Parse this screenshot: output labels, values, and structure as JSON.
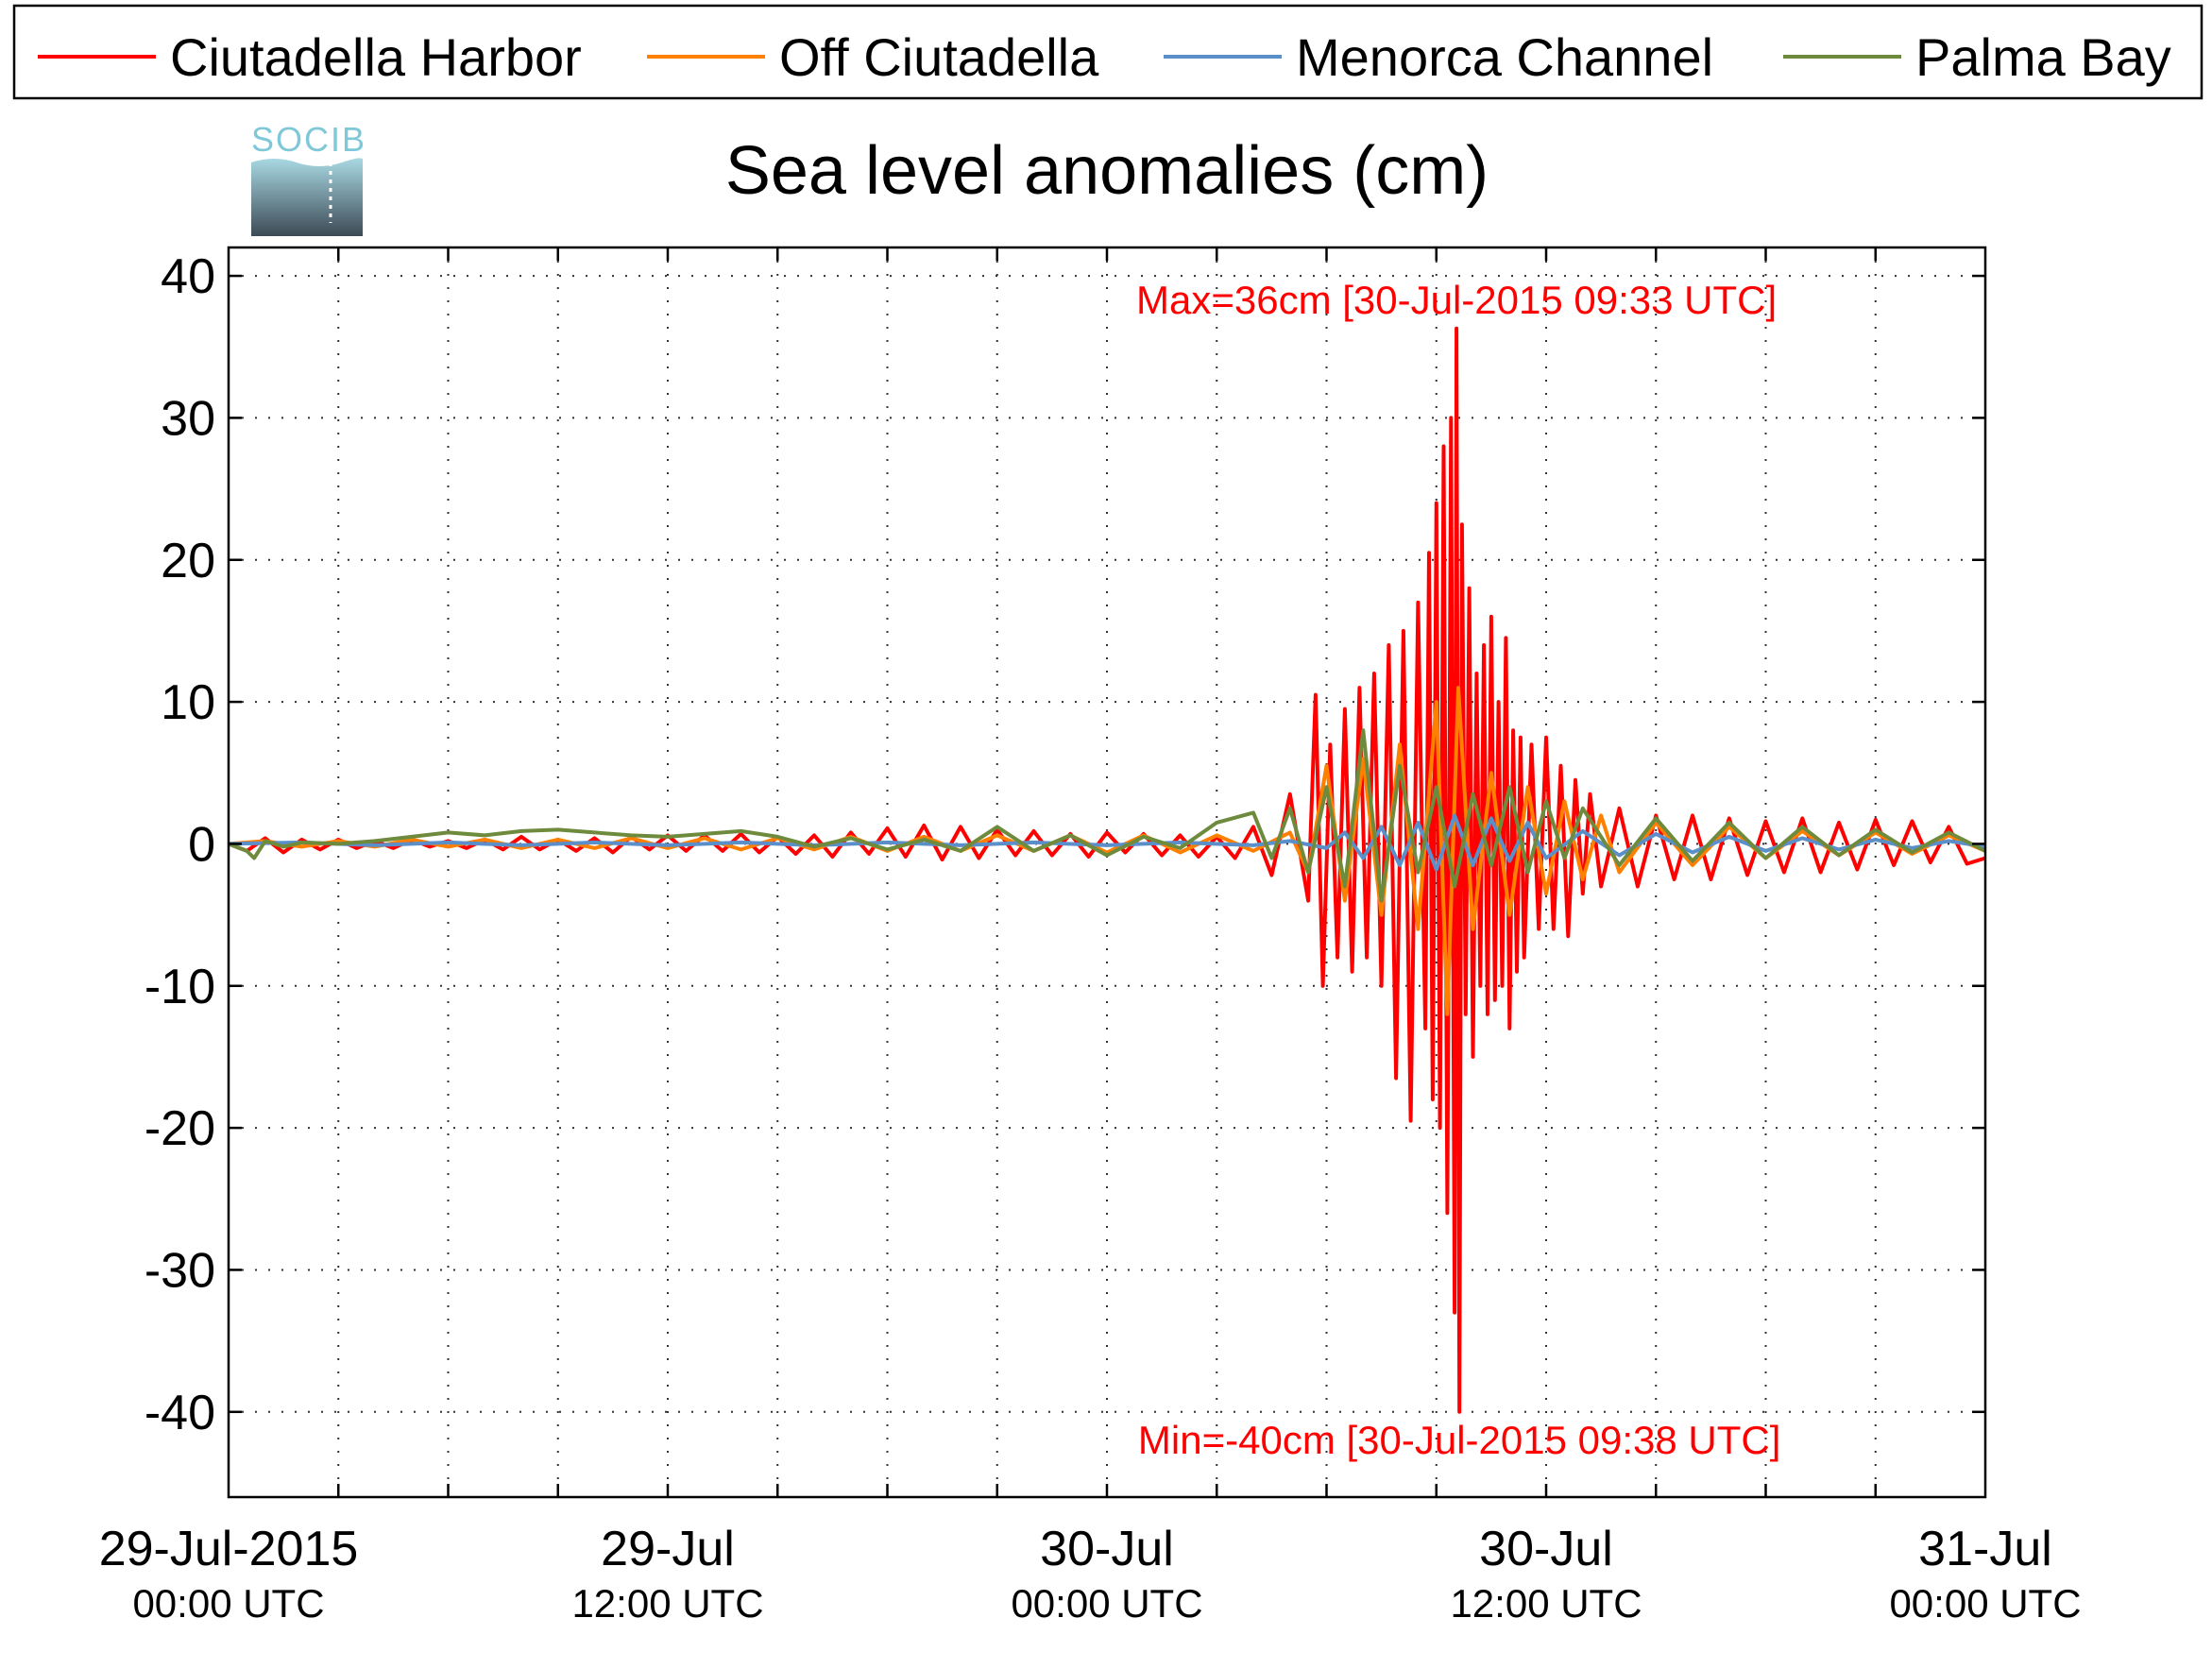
{
  "colors": {
    "background": "#ffffff",
    "axis": "#000000",
    "grid": "#333333",
    "annotation": "#ff0000",
    "logo_text": "#7fc8d8",
    "logo_top": "#a9d9e3",
    "logo_bottom": "#3c4a55"
  },
  "logo": {
    "text": "SOCIB"
  },
  "chart_data": {
    "type": "line",
    "title": "Sea level anomalies (cm)",
    "xlabel": "",
    "ylabel": "",
    "x_unit": "hours since 29-Jul-2015 00:00 UTC",
    "xlim": [
      0,
      48
    ],
    "ylim": [
      -46,
      42
    ],
    "grid": true,
    "legend_position": "top",
    "yticks": [
      40,
      30,
      20,
      10,
      0,
      -10,
      -20,
      -30,
      -40
    ],
    "ytick_labels": [
      "40",
      "30",
      "20",
      "10",
      "0",
      "-10",
      "-20",
      "-30",
      "-40"
    ],
    "xticks_labeled": [
      {
        "x": 0,
        "line1": "29-Jul-2015",
        "line2": "00:00 UTC"
      },
      {
        "x": 12,
        "line1": "29-Jul",
        "line2": "12:00 UTC"
      },
      {
        "x": 24,
        "line1": "30-Jul",
        "line2": "00:00 UTC"
      },
      {
        "x": 36,
        "line1": "30-Jul",
        "line2": "12:00 UTC"
      },
      {
        "x": 48,
        "line1": "31-Jul",
        "line2": "00:00 UTC"
      }
    ],
    "xgrid": [
      3,
      6,
      9,
      12,
      15,
      18,
      21,
      24,
      27,
      30,
      33,
      36,
      39,
      42,
      45
    ],
    "annotations": [
      {
        "text": "Max=36cm [30-Jul-2015 09:33 UTC]",
        "x": 33.55,
        "y": 36,
        "position": "above"
      },
      {
        "text": "Min=-40cm [30-Jul-2015 09:38 UTC]",
        "x": 33.63,
        "y": -40,
        "position": "below"
      }
    ],
    "series": [
      {
        "name": "Ciutadella Harbor",
        "color": "#ff0000",
        "x": [
          0,
          0.5,
          1,
          1.5,
          2,
          2.5,
          3,
          3.5,
          4,
          4.5,
          5,
          5.5,
          6,
          6.5,
          7,
          7.5,
          8,
          8.5,
          9,
          9.5,
          10,
          10.5,
          11,
          11.5,
          12,
          12.5,
          13,
          13.5,
          14,
          14.5,
          15,
          15.5,
          16,
          16.5,
          17,
          17.5,
          18,
          18.5,
          19,
          19.5,
          20,
          20.5,
          21,
          21.5,
          22,
          22.5,
          23,
          23.5,
          24,
          24.5,
          25,
          25.5,
          26,
          26.5,
          27,
          27.5,
          28,
          28.5,
          29,
          29.5,
          29.7,
          29.9,
          30.1,
          30.3,
          30.5,
          30.7,
          30.9,
          31.1,
          31.3,
          31.5,
          31.7,
          31.9,
          32.1,
          32.3,
          32.5,
          32.7,
          32.8,
          32.9,
          33.0,
          33.1,
          33.2,
          33.3,
          33.4,
          33.5,
          33.55,
          33.63,
          33.7,
          33.8,
          33.9,
          34.0,
          34.1,
          34.2,
          34.3,
          34.4,
          34.5,
          34.6,
          34.7,
          34.8,
          34.9,
          35.0,
          35.1,
          35.2,
          35.3,
          35.4,
          35.6,
          35.8,
          36.0,
          36.2,
          36.4,
          36.6,
          36.8,
          37.0,
          37.2,
          37.5,
          38,
          38.5,
          39,
          39.5,
          40,
          40.5,
          41,
          41.5,
          42,
          42.5,
          43,
          43.5,
          44,
          44.5,
          45,
          45.5,
          46,
          46.5,
          47,
          47.5,
          48
        ],
        "y": [
          0,
          -0.5,
          0.4,
          -0.6,
          0.3,
          -0.4,
          0.3,
          -0.3,
          0.2,
          -0.3,
          0.3,
          -0.2,
          0.2,
          -0.3,
          0.3,
          -0.4,
          0.5,
          -0.4,
          0.3,
          -0.5,
          0.4,
          -0.6,
          0.5,
          -0.4,
          0.6,
          -0.5,
          0.6,
          -0.5,
          0.7,
          -0.6,
          0.5,
          -0.7,
          0.6,
          -0.9,
          0.8,
          -0.7,
          1.1,
          -0.9,
          1.3,
          -1.1,
          1.2,
          -1.0,
          1.0,
          -0.8,
          0.9,
          -0.8,
          0.7,
          -0.9,
          0.8,
          -0.6,
          0.7,
          -0.8,
          0.6,
          -0.9,
          0.5,
          -1.0,
          1.2,
          -2.2,
          3.5,
          -4.0,
          10.5,
          -10.0,
          7.0,
          -8.0,
          9.5,
          -9.0,
          11.0,
          -8.0,
          12.0,
          -10.0,
          14.0,
          -16.5,
          15.0,
          -19.5,
          17.0,
          -13.0,
          20.5,
          -18.0,
          24.0,
          -20.0,
          28.0,
          -26.0,
          30.0,
          -33.0,
          36.3,
          -40.0,
          22.5,
          -12.0,
          18.0,
          -15.0,
          12.0,
          -10.0,
          14.0,
          -12.0,
          16.0,
          -11.0,
          10.0,
          -10.0,
          14.5,
          -13.0,
          8.0,
          -9.0,
          7.5,
          -8.0,
          7.0,
          -6.0,
          7.5,
          -6.0,
          5.5,
          -6.5,
          4.5,
          -3.5,
          3.5,
          -3.0,
          2.5,
          -3.0,
          2.0,
          -2.5,
          2.0,
          -2.5,
          1.8,
          -2.2,
          1.6,
          -2.0,
          1.8,
          -2.0,
          1.5,
          -1.8,
          1.7,
          -1.5,
          1.6,
          -1.3,
          1.2,
          -1.4,
          -1.0
        ]
      },
      {
        "name": "Off Ciutadella",
        "color": "#ff8000",
        "x": [
          0,
          1,
          2,
          3,
          4,
          5,
          6,
          7,
          8,
          9,
          10,
          11,
          12,
          13,
          14,
          15,
          16,
          17,
          18,
          19,
          20,
          21,
          22,
          23,
          24,
          25,
          26,
          27,
          28,
          29,
          29.5,
          30,
          30.5,
          31,
          31.5,
          32,
          32.5,
          33,
          33.3,
          33.6,
          34,
          34.5,
          35,
          35.5,
          36,
          36.5,
          37,
          37.5,
          38,
          39,
          40,
          41,
          42,
          43,
          44,
          45,
          46,
          47,
          48
        ],
        "y": [
          0,
          0.2,
          -0.2,
          0.2,
          -0.2,
          0.3,
          -0.2,
          0.3,
          -0.3,
          0.3,
          -0.3,
          0.4,
          -0.3,
          0.4,
          -0.4,
          0.4,
          -0.4,
          0.5,
          -0.5,
          0.5,
          -0.5,
          0.6,
          -0.5,
          0.6,
          -0.6,
          0.6,
          -0.6,
          0.6,
          -0.5,
          0.8,
          -2.0,
          5.5,
          -4.0,
          6.0,
          -5.0,
          7.0,
          -6.0,
          10.0,
          -12.0,
          11.0,
          -6.0,
          5.0,
          -5.0,
          4.0,
          -3.5,
          3.0,
          -2.5,
          2.0,
          -2.0,
          1.5,
          -1.5,
          1.2,
          -1.0,
          0.9,
          -0.8,
          0.8,
          -0.7,
          0.6,
          -0.5
        ]
      },
      {
        "name": "Menorca Channel",
        "color": "#5b8fc9",
        "x": [
          0,
          2,
          4,
          6,
          8,
          10,
          12,
          14,
          16,
          18,
          20,
          22,
          24,
          26,
          28,
          29,
          30,
          30.5,
          31,
          31.5,
          32,
          32.5,
          33,
          33.5,
          34,
          34.5,
          35,
          35.5,
          36,
          37,
          38,
          39,
          40,
          41,
          42,
          43,
          44,
          45,
          46,
          47,
          48
        ],
        "y": [
          0,
          0.1,
          -0.1,
          0.1,
          -0.1,
          0.1,
          -0.1,
          0.1,
          -0.1,
          0.1,
          -0.1,
          0.1,
          -0.1,
          0.1,
          -0.1,
          0.2,
          -0.3,
          0.8,
          -1.0,
          1.2,
          -1.5,
          1.5,
          -1.8,
          2.0,
          -1.5,
          1.8,
          -1.2,
          1.5,
          -1.0,
          0.9,
          -0.8,
          0.7,
          -0.6,
          0.5,
          -0.5,
          0.4,
          -0.4,
          0.3,
          -0.3,
          0.2,
          -0.2
        ]
      },
      {
        "name": "Palma Bay",
        "color": "#6e8b3d",
        "x": [
          0,
          0.5,
          0.7,
          1,
          1.5,
          2,
          3,
          4,
          5,
          6,
          7,
          8,
          9,
          10,
          11,
          12,
          13,
          14,
          15,
          16,
          17,
          18,
          19,
          20,
          21,
          22,
          23,
          24,
          25,
          26,
          27,
          28,
          28.5,
          29,
          29.5,
          30,
          30.5,
          31,
          31.5,
          32,
          32.5,
          33,
          33.5,
          34,
          34.5,
          35,
          35.5,
          36,
          36.5,
          37,
          38,
          39,
          40,
          41,
          42,
          43,
          44,
          45,
          46,
          47,
          48
        ],
        "y": [
          0,
          -0.5,
          -1.0,
          0.2,
          -0.2,
          0.1,
          0,
          0.2,
          0.5,
          0.8,
          0.6,
          0.9,
          1.0,
          0.8,
          0.6,
          0.5,
          0.7,
          0.9,
          0.5,
          -0.2,
          0.4,
          -0.4,
          0.3,
          -0.5,
          1.2,
          -0.5,
          0.6,
          -0.8,
          0.5,
          -0.3,
          1.5,
          2.2,
          -1.0,
          2.5,
          -2.0,
          4.0,
          -3.0,
          8.0,
          -4.0,
          5.5,
          -2.0,
          4.0,
          -3.0,
          3.5,
          -1.5,
          4.0,
          -2.0,
          3.0,
          -1.0,
          2.5,
          -1.5,
          1.8,
          -1.2,
          1.5,
          -1.0,
          1.2,
          -0.8,
          1.0,
          -0.6,
          0.8,
          -0.5
        ]
      }
    ]
  }
}
